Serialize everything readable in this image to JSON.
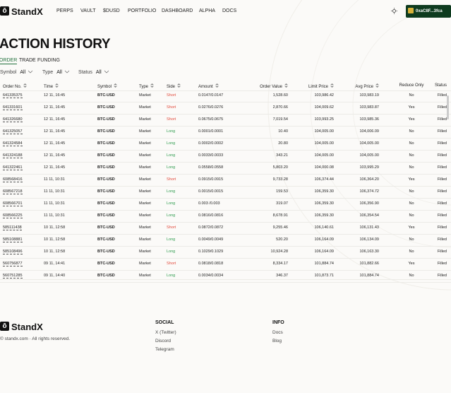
{
  "nav": {
    "brand": "StandX",
    "links": [
      "PERPS",
      "VAULT",
      "$DUSD",
      "PORTFOLIO",
      "DASHBOARD",
      "ALPHA",
      "DOCS"
    ],
    "wallet": "0xaC8F...3fca"
  },
  "page": {
    "title": "ACTION HISTORY",
    "tabs": [
      "ORDER",
      "TRADE",
      "FUNDING"
    ],
    "active_tab": 0,
    "filters": [
      {
        "label": "Symbol",
        "value": "All"
      },
      {
        "label": "Type",
        "value": "All"
      },
      {
        "label": "Status",
        "value": "All"
      }
    ]
  },
  "table": {
    "columns": [
      "Order No.",
      "Time",
      "Symbol",
      "Type",
      "Side",
      "Amount",
      "Order Value",
      "Limit Price",
      "Avg Price",
      "Reduce Only",
      "Status"
    ],
    "side_colors": {
      "Short": "#e2493b",
      "Long": "#2c9b4c"
    },
    "rows": [
      [
        "641335375",
        "12 11, 16:45",
        "BTC-USD",
        "Market",
        "Short",
        "0.0147/0.0147",
        "1,528.60",
        "103,986.42",
        "103,983.19",
        "No",
        "Filled"
      ],
      [
        "641331601",
        "12 11, 16:45",
        "BTC-USD",
        "Market",
        "Short",
        "0.0276/0.0276",
        "2,870.66",
        "104,009.62",
        "103,983.87",
        "Yes",
        "Filled"
      ],
      [
        "641326680",
        "12 11, 16:45",
        "BTC-USD",
        "Market",
        "Short",
        "0.0675/0.0675",
        "7,019.54",
        "103,993.25",
        "103,985.36",
        "Yes",
        "Filled"
      ],
      [
        "641325057",
        "12 11, 16:45",
        "BTC-USD",
        "Market",
        "Long",
        "0.0001/0.0001",
        "10.40",
        "104,005.00",
        "104,006.09",
        "No",
        "Filled"
      ],
      [
        "641324584",
        "12 11, 16:45",
        "BTC-USD",
        "Market",
        "Long",
        "0.0002/0.0002",
        "20.80",
        "104,005.00",
        "104,005.00",
        "No",
        "Filled"
      ],
      [
        "641324188",
        "12 11, 16:45",
        "BTC-USD",
        "Market",
        "Long",
        "0.0033/0.0033",
        "343.21",
        "104,005.00",
        "104,005.00",
        "No",
        "Filled"
      ],
      [
        "641322461",
        "12 11, 16:45",
        "BTC-USD",
        "Market",
        "Long",
        "0.0558/0.0558",
        "5,803.20",
        "104,000.08",
        "103,995.29",
        "No",
        "Filled"
      ],
      [
        "608568416",
        "11 11, 10:31",
        "BTC-USD",
        "Market",
        "Short",
        "0.0915/0.0915",
        "9,733.28",
        "106,374.44",
        "106,364.20",
        "Yes",
        "Filled"
      ],
      [
        "608567218",
        "11 11, 10:31",
        "BTC-USD",
        "Market",
        "Long",
        "0.0015/0.0015",
        "159.53",
        "106,359.30",
        "106,374.72",
        "No",
        "Filled"
      ],
      [
        "608566701",
        "11 11, 10:31",
        "BTC-USD",
        "Market",
        "Long",
        "0.003 /0.003",
        "319.07",
        "106,359.30",
        "106,356.90",
        "No",
        "Filled"
      ],
      [
        "608566225",
        "11 11, 10:31",
        "BTC-USD",
        "Market",
        "Long",
        "0.0816/0.0816",
        "8,678.91",
        "106,359.30",
        "106,354.54",
        "No",
        "Filled"
      ],
      [
        "585111438",
        "10 11, 12:58",
        "BTC-USD",
        "Market",
        "Short",
        "0.0872/0.0872",
        "9,255.46",
        "106,140.61",
        "106,131.43",
        "Yes",
        "Filled"
      ],
      [
        "585108881",
        "10 11, 12:58",
        "BTC-USD",
        "Market",
        "Long",
        "0.0049/0.0049",
        "520.20",
        "106,164.09",
        "106,134.09",
        "No",
        "Filled"
      ],
      [
        "585108496",
        "10 11, 12:58",
        "BTC-USD",
        "Market",
        "Long",
        "0.1029/0.1029",
        "10,924.28",
        "106,164.09",
        "106,163.30",
        "No",
        "Filled"
      ],
      [
        "560756877",
        "09 11, 14:41",
        "BTC-USD",
        "Market",
        "Short",
        "0.0818/0.0818",
        "8,334.17",
        "101,884.74",
        "101,882.66",
        "Yes",
        "Filled"
      ],
      [
        "560751285",
        "09 11, 14:40",
        "BTC-USD",
        "Market",
        "Long",
        "0.0034/0.0034",
        "346.37",
        "101,873.71",
        "101,884.74",
        "No",
        "Filled"
      ]
    ]
  },
  "footer": {
    "brand": "StandX",
    "copyright": "© standx.com · All rights reserved.",
    "sections": [
      {
        "title": "SOCIAL",
        "links": [
          "X (Twitter)",
          "Discord",
          "Telegram"
        ]
      },
      {
        "title": "INFO",
        "links": [
          "Docs",
          "Blog"
        ]
      }
    ]
  }
}
